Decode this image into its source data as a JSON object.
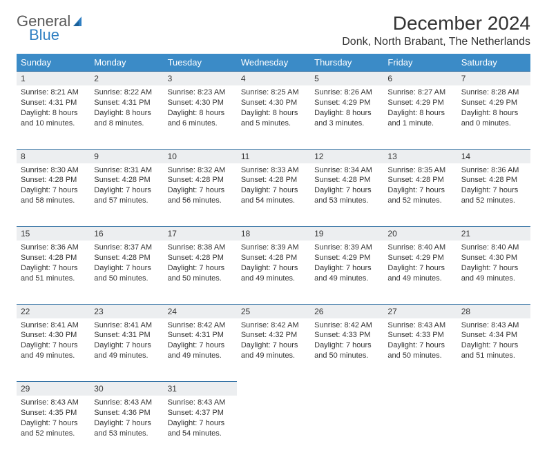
{
  "logo": {
    "text1": "General",
    "text2": "Blue"
  },
  "title": "December 2024",
  "location": "Donk, North Brabant, The Netherlands",
  "colors": {
    "header_bg": "#3b8bc7",
    "header_text": "#ffffff",
    "daynum_bg": "#eceef0",
    "daynum_border": "#2f6fa3",
    "body_text": "#333333",
    "logo_gray": "#5a5a5a",
    "logo_blue": "#2f7fc2",
    "page_bg": "#ffffff"
  },
  "font": {
    "family": "Arial",
    "title_size": 28,
    "location_size": 16,
    "th_size": 13,
    "daynum_size": 12,
    "cell_size": 11
  },
  "weekdays": [
    "Sunday",
    "Monday",
    "Tuesday",
    "Wednesday",
    "Thursday",
    "Friday",
    "Saturday"
  ],
  "weeks": [
    [
      {
        "n": "1",
        "sr": "8:21 AM",
        "ss": "4:31 PM",
        "dl": "8 hours and 10 minutes."
      },
      {
        "n": "2",
        "sr": "8:22 AM",
        "ss": "4:31 PM",
        "dl": "8 hours and 8 minutes."
      },
      {
        "n": "3",
        "sr": "8:23 AM",
        "ss": "4:30 PM",
        "dl": "8 hours and 6 minutes."
      },
      {
        "n": "4",
        "sr": "8:25 AM",
        "ss": "4:30 PM",
        "dl": "8 hours and 5 minutes."
      },
      {
        "n": "5",
        "sr": "8:26 AM",
        "ss": "4:29 PM",
        "dl": "8 hours and 3 minutes."
      },
      {
        "n": "6",
        "sr": "8:27 AM",
        "ss": "4:29 PM",
        "dl": "8 hours and 1 minute."
      },
      {
        "n": "7",
        "sr": "8:28 AM",
        "ss": "4:29 PM",
        "dl": "8 hours and 0 minutes."
      }
    ],
    [
      {
        "n": "8",
        "sr": "8:30 AM",
        "ss": "4:28 PM",
        "dl": "7 hours and 58 minutes."
      },
      {
        "n": "9",
        "sr": "8:31 AM",
        "ss": "4:28 PM",
        "dl": "7 hours and 57 minutes."
      },
      {
        "n": "10",
        "sr": "8:32 AM",
        "ss": "4:28 PM",
        "dl": "7 hours and 56 minutes."
      },
      {
        "n": "11",
        "sr": "8:33 AM",
        "ss": "4:28 PM",
        "dl": "7 hours and 54 minutes."
      },
      {
        "n": "12",
        "sr": "8:34 AM",
        "ss": "4:28 PM",
        "dl": "7 hours and 53 minutes."
      },
      {
        "n": "13",
        "sr": "8:35 AM",
        "ss": "4:28 PM",
        "dl": "7 hours and 52 minutes."
      },
      {
        "n": "14",
        "sr": "8:36 AM",
        "ss": "4:28 PM",
        "dl": "7 hours and 52 minutes."
      }
    ],
    [
      {
        "n": "15",
        "sr": "8:36 AM",
        "ss": "4:28 PM",
        "dl": "7 hours and 51 minutes."
      },
      {
        "n": "16",
        "sr": "8:37 AM",
        "ss": "4:28 PM",
        "dl": "7 hours and 50 minutes."
      },
      {
        "n": "17",
        "sr": "8:38 AM",
        "ss": "4:28 PM",
        "dl": "7 hours and 50 minutes."
      },
      {
        "n": "18",
        "sr": "8:39 AM",
        "ss": "4:28 PM",
        "dl": "7 hours and 49 minutes."
      },
      {
        "n": "19",
        "sr": "8:39 AM",
        "ss": "4:29 PM",
        "dl": "7 hours and 49 minutes."
      },
      {
        "n": "20",
        "sr": "8:40 AM",
        "ss": "4:29 PM",
        "dl": "7 hours and 49 minutes."
      },
      {
        "n": "21",
        "sr": "8:40 AM",
        "ss": "4:30 PM",
        "dl": "7 hours and 49 minutes."
      }
    ],
    [
      {
        "n": "22",
        "sr": "8:41 AM",
        "ss": "4:30 PM",
        "dl": "7 hours and 49 minutes."
      },
      {
        "n": "23",
        "sr": "8:41 AM",
        "ss": "4:31 PM",
        "dl": "7 hours and 49 minutes."
      },
      {
        "n": "24",
        "sr": "8:42 AM",
        "ss": "4:31 PM",
        "dl": "7 hours and 49 minutes."
      },
      {
        "n": "25",
        "sr": "8:42 AM",
        "ss": "4:32 PM",
        "dl": "7 hours and 49 minutes."
      },
      {
        "n": "26",
        "sr": "8:42 AM",
        "ss": "4:33 PM",
        "dl": "7 hours and 50 minutes."
      },
      {
        "n": "27",
        "sr": "8:43 AM",
        "ss": "4:33 PM",
        "dl": "7 hours and 50 minutes."
      },
      {
        "n": "28",
        "sr": "8:43 AM",
        "ss": "4:34 PM",
        "dl": "7 hours and 51 minutes."
      }
    ],
    [
      {
        "n": "29",
        "sr": "8:43 AM",
        "ss": "4:35 PM",
        "dl": "7 hours and 52 minutes."
      },
      {
        "n": "30",
        "sr": "8:43 AM",
        "ss": "4:36 PM",
        "dl": "7 hours and 53 minutes."
      },
      {
        "n": "31",
        "sr": "8:43 AM",
        "ss": "4:37 PM",
        "dl": "7 hours and 54 minutes."
      },
      null,
      null,
      null,
      null
    ]
  ]
}
